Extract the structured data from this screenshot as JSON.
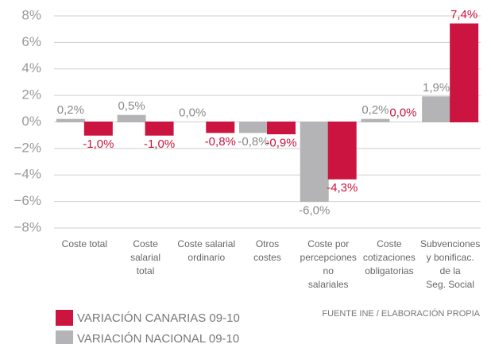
{
  "chart_data": {
    "type": "bar",
    "categories": [
      [
        "Coste total"
      ],
      [
        "Coste",
        "salarial",
        "total"
      ],
      [
        "Coste salarial",
        "ordinario"
      ],
      [
        "Otros",
        "costes"
      ],
      [
        "Coste por",
        "percepciones",
        "no",
        "salariales"
      ],
      [
        "Coste",
        "cotizaciones",
        "obligatorias"
      ],
      [
        "Subvenciones",
        "y bonificac.",
        "de la",
        "Seg. Social"
      ]
    ],
    "series": [
      {
        "name": "VARIACIÓN NACIONAL 09-10",
        "color": "#b4b4b6",
        "label_color": "#8a8a8c",
        "values": [
          0.2,
          0.5,
          0.0,
          -0.8,
          -6.0,
          0.2,
          1.9
        ],
        "value_labels": [
          "0,2%",
          "0,5%",
          "0,0%",
          "-0,8%",
          "-6,0%",
          "0,2%",
          "1,9%"
        ]
      },
      {
        "name": "VARIACIÓN CANARIAS 09-10",
        "color": "#cc1440",
        "label_color": "#cc1440",
        "values": [
          -1.0,
          -1.0,
          -0.8,
          -0.9,
          -4.3,
          0.0,
          7.4
        ],
        "value_labels": [
          "-1,0%",
          "-1,0%",
          "-0,8%",
          "-0,9%",
          "-4,3%",
          "0,0%",
          "7,4%"
        ]
      }
    ],
    "ylim": [
      -8,
      8
    ],
    "yticks": [
      {
        "value": 8,
        "label": "8%"
      },
      {
        "value": 6,
        "label": "6%"
      },
      {
        "value": 4,
        "label": "4%"
      },
      {
        "value": 2,
        "label": "2%"
      },
      {
        "value": 0,
        "label": "0%"
      },
      {
        "value": -2,
        "label": "−2%"
      },
      {
        "value": -4,
        "label": "−4%"
      },
      {
        "value": -6,
        "label": "−6%"
      },
      {
        "value": -8,
        "label": "−8%"
      }
    ],
    "grid": true,
    "source": "FUENTE INE / ELABORACIÓN PROPIA"
  }
}
